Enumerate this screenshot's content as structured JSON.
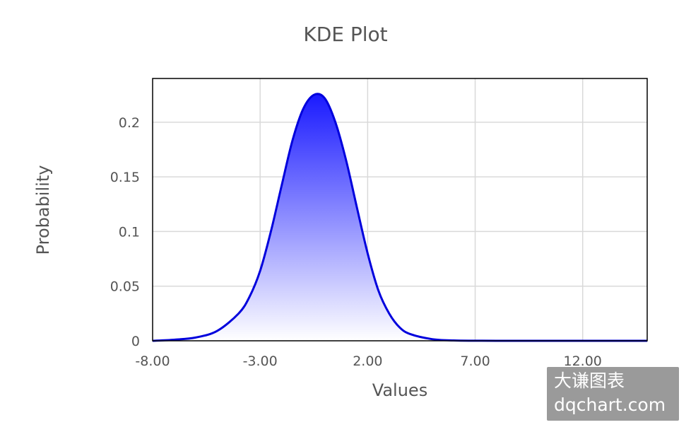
{
  "chart_data": {
    "type": "area",
    "title": "KDE Plot",
    "xlabel": "Values",
    "ylabel": "Probability",
    "xlim": [
      -8,
      15
    ],
    "ylim": [
      0,
      0.24
    ],
    "x_ticks": [
      -8,
      -3,
      2,
      7,
      12
    ],
    "x_tick_labels": [
      "-8.00",
      "-3.00",
      "2.00",
      "7.00",
      "12.00"
    ],
    "y_ticks": [
      0,
      0.05,
      0.1,
      0.15,
      0.2
    ],
    "y_tick_labels": [
      "0",
      "0.05",
      "0.1",
      "0.15",
      "0.2"
    ],
    "grid": true,
    "series": [
      {
        "x": [
          -8,
          -7,
          -6,
          -5,
          -4,
          -3.5,
          -3,
          -2.5,
          -2,
          -1.5,
          -1,
          -0.5,
          0,
          0.5,
          1,
          1.5,
          2,
          2.5,
          3,
          3.5,
          4,
          5,
          6,
          7,
          8,
          10,
          12,
          15
        ],
        "y": [
          0.0,
          0.001,
          0.003,
          0.009,
          0.025,
          0.04,
          0.064,
          0.1,
          0.142,
          0.183,
          0.212,
          0.225,
          0.222,
          0.2,
          0.165,
          0.122,
          0.08,
          0.046,
          0.025,
          0.012,
          0.006,
          0.0015,
          0.0003,
          0.0001,
          0.0,
          0.0,
          0.0,
          0.0
        ]
      }
    ],
    "colors": {
      "line": "#0000dd",
      "fill_top": "#1a1aff",
      "fill_bottom": "#ffffff",
      "axis_frame": "#000000",
      "grid": "#d9d9d9"
    }
  },
  "watermark": {
    "line1": "大谦图表",
    "line2": "dqchart.com"
  }
}
